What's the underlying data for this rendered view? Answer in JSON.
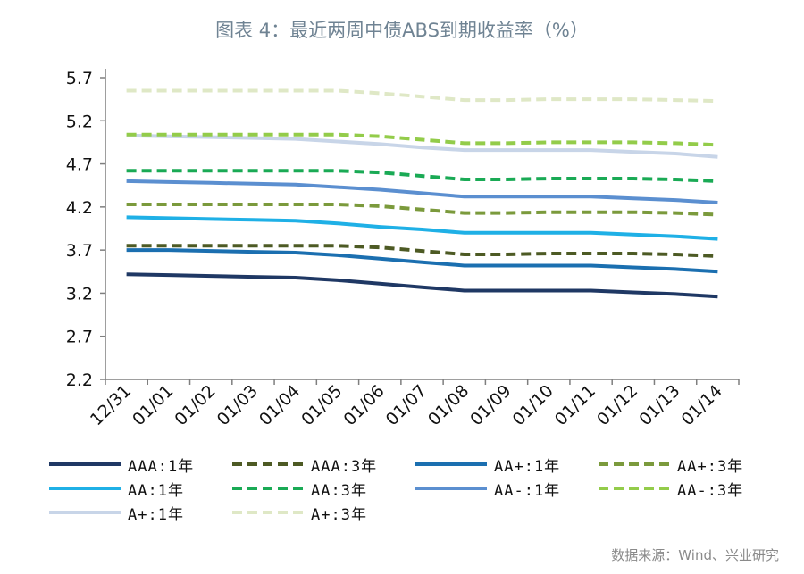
{
  "title": "图表 4：最近两周中债ABS到期收益率（%）",
  "source": "数据来源：Wind、兴业研究",
  "chart_data": {
    "type": "line",
    "categories": [
      "12/31",
      "01/01",
      "01/02",
      "01/03",
      "01/04",
      "01/05",
      "01/06",
      "01/07",
      "01/08",
      "01/09",
      "01/10",
      "01/11",
      "01/12",
      "01/13",
      "01/14"
    ],
    "ylim": [
      2.2,
      5.7
    ],
    "yticks": [
      "2.2",
      "2.7",
      "3.2",
      "3.7",
      "4.2",
      "4.7",
      "5.2",
      "5.7"
    ],
    "grid": false,
    "legend_position": "bottom",
    "series": [
      {
        "name": "AAA:1年",
        "color": "#1f3864",
        "dash": false,
        "values": [
          3.42,
          3.41,
          3.4,
          3.39,
          3.38,
          3.35,
          3.31,
          3.27,
          3.23,
          3.23,
          3.23,
          3.23,
          3.21,
          3.19,
          3.16
        ]
      },
      {
        "name": "AAA:3年",
        "color": "#4d5a24",
        "dash": true,
        "values": [
          3.75,
          3.75,
          3.75,
          3.75,
          3.75,
          3.75,
          3.73,
          3.69,
          3.65,
          3.65,
          3.66,
          3.66,
          3.66,
          3.65,
          3.63
        ]
      },
      {
        "name": "AA+:1年",
        "color": "#1b6fb0",
        "dash": false,
        "values": [
          3.7,
          3.7,
          3.69,
          3.68,
          3.67,
          3.64,
          3.6,
          3.56,
          3.52,
          3.52,
          3.52,
          3.52,
          3.5,
          3.48,
          3.45
        ]
      },
      {
        "name": "AA+:3年",
        "color": "#7b9a3c",
        "dash": true,
        "values": [
          4.23,
          4.23,
          4.23,
          4.23,
          4.23,
          4.23,
          4.21,
          4.17,
          4.13,
          4.13,
          4.14,
          4.14,
          4.14,
          4.13,
          4.11
        ]
      },
      {
        "name": "AA:1年",
        "color": "#1fb0e6",
        "dash": false,
        "values": [
          4.08,
          4.07,
          4.06,
          4.05,
          4.04,
          4.01,
          3.97,
          3.94,
          3.9,
          3.9,
          3.9,
          3.9,
          3.88,
          3.86,
          3.83
        ]
      },
      {
        "name": "AA:3年",
        "color": "#1aaa55",
        "dash": true,
        "values": [
          4.62,
          4.62,
          4.62,
          4.62,
          4.62,
          4.62,
          4.6,
          4.56,
          4.52,
          4.52,
          4.53,
          4.53,
          4.53,
          4.52,
          4.5
        ]
      },
      {
        "name": "AA-:1年",
        "color": "#5b8fd0",
        "dash": false,
        "values": [
          4.5,
          4.49,
          4.48,
          4.47,
          4.46,
          4.43,
          4.4,
          4.36,
          4.32,
          4.32,
          4.32,
          4.32,
          4.3,
          4.28,
          4.25
        ]
      },
      {
        "name": "AA-:3年",
        "color": "#93cc4a",
        "dash": true,
        "values": [
          5.04,
          5.04,
          5.04,
          5.04,
          5.04,
          5.04,
          5.02,
          4.98,
          4.94,
          4.94,
          4.95,
          4.95,
          4.95,
          4.94,
          4.92
        ]
      },
      {
        "name": "A+:1年",
        "color": "#c8d5e8",
        "dash": false,
        "values": [
          5.03,
          5.02,
          5.01,
          5.0,
          4.99,
          4.96,
          4.93,
          4.89,
          4.86,
          4.86,
          4.86,
          4.86,
          4.84,
          4.82,
          4.78
        ]
      },
      {
        "name": "A+:3年",
        "color": "#dfe8c6",
        "dash": true,
        "values": [
          5.55,
          5.55,
          5.55,
          5.55,
          5.55,
          5.55,
          5.52,
          5.48,
          5.44,
          5.44,
          5.45,
          5.45,
          5.45,
          5.44,
          5.43
        ]
      }
    ]
  }
}
